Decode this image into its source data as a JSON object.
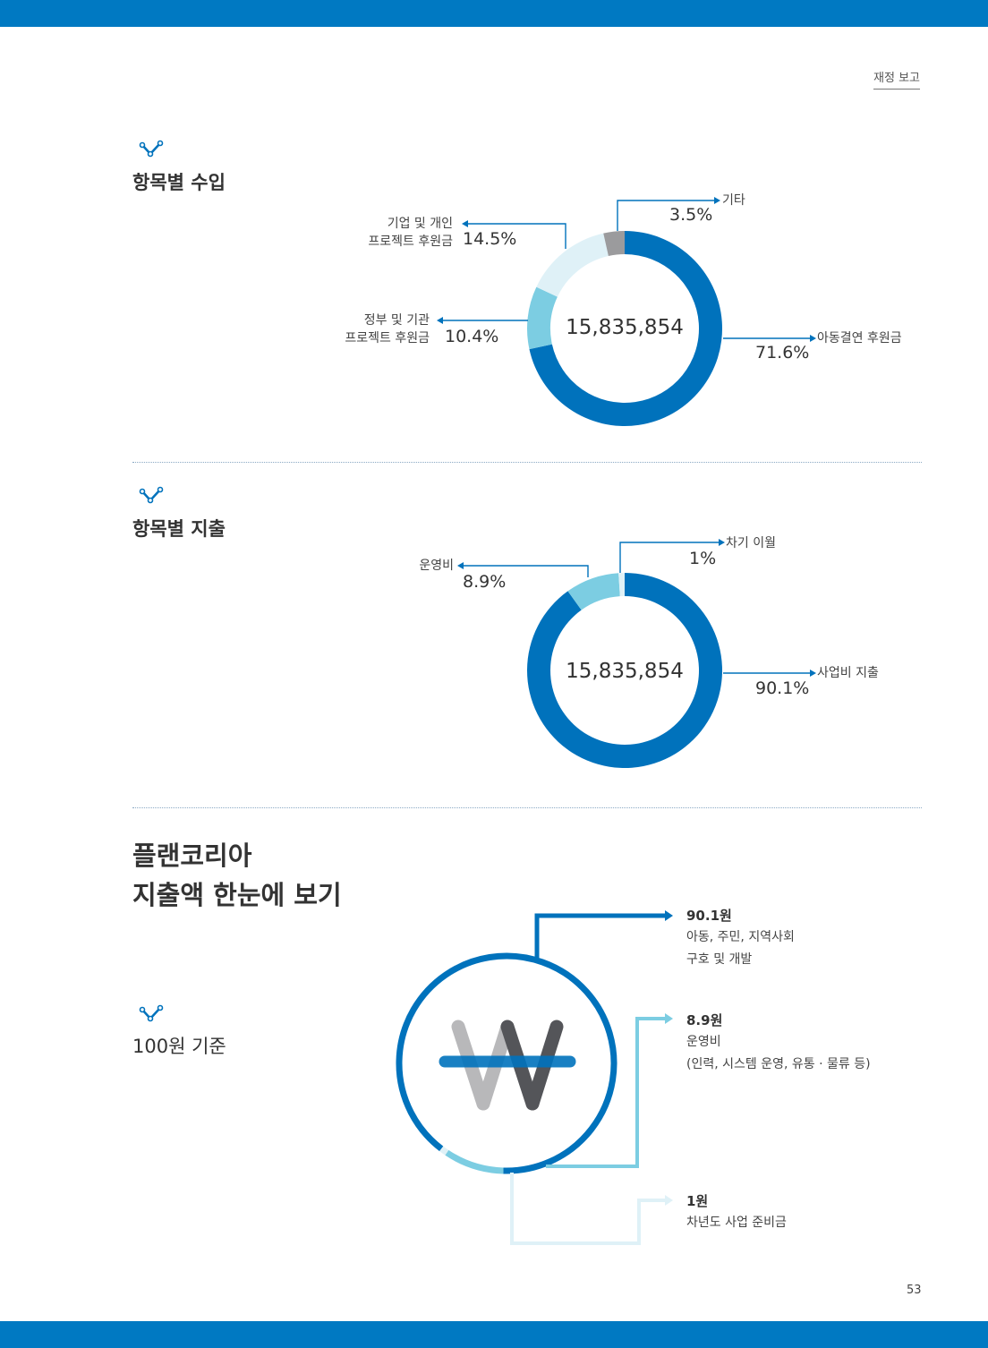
{
  "header": {
    "running_head": "재정 보고",
    "page_number": "53"
  },
  "income": {
    "title": "항목별 수입",
    "total": "15,835,854",
    "labels": {
      "corporate_line1": "기업 및 개인",
      "corporate_line2": "프로젝트 후원금",
      "corporate_pct": "14.5%",
      "government_line1": "정부 및 기관",
      "government_line2": "프로젝트 후원금",
      "government_pct": "10.4%",
      "other": "기타",
      "other_pct": "3.5%",
      "sponsorship": "아동결연 후원금",
      "sponsorship_pct": "71.6%"
    }
  },
  "expense": {
    "title": "항목별 지출",
    "total": "15,835,854",
    "labels": {
      "operating": "운영비",
      "operating_pct": "8.9%",
      "carryover": "차기 이월",
      "carryover_pct": "1%",
      "business": "사업비 지출",
      "business_pct": "90.1%"
    }
  },
  "overview": {
    "title_line1": "플랜코리아",
    "title_line2": "지출액 한눈에 보기",
    "basis": "100원 기준",
    "items": [
      {
        "amount": "90.1원",
        "desc_line1": "아동, 주민, 지역사회",
        "desc_line2": "구호 및 개발"
      },
      {
        "amount": "8.9원",
        "desc_line1": "운영비",
        "desc_line2": "(인력, 시스템 운영, 유통 · 물류 등)"
      },
      {
        "amount": "1원",
        "desc_line1": "차년도 사업 준비금",
        "desc_line2": ""
      }
    ]
  },
  "colors": {
    "primary": "#0072bc",
    "light_blue": "#7ccde2",
    "pale_blue": "#dff1f7",
    "gray": "#9b9b9d",
    "dark_gray": "#545559",
    "mid_gray": "#b8b8ba"
  },
  "chart_data": [
    {
      "type": "pie",
      "title": "항목별 수입",
      "center_value": 15835854,
      "slices": [
        {
          "label": "아동결연 후원금",
          "value": 71.6,
          "color": "#0072bc"
        },
        {
          "label": "정부 및 기관 프로젝트 후원금",
          "value": 10.4,
          "color": "#7ccde2"
        },
        {
          "label": "기업 및 개인 프로젝트 후원금",
          "value": 14.5,
          "color": "#dff1f7"
        },
        {
          "label": "기타",
          "value": 3.5,
          "color": "#9b9b9d"
        }
      ]
    },
    {
      "type": "pie",
      "title": "항목별 지출",
      "center_value": 15835854,
      "slices": [
        {
          "label": "사업비 지출",
          "value": 90.1,
          "color": "#0072bc"
        },
        {
          "label": "운영비",
          "value": 8.9,
          "color": "#7ccde2"
        },
        {
          "label": "차기 이월",
          "value": 1,
          "color": "#dff1f7"
        }
      ]
    },
    {
      "type": "pie",
      "title": "100원 기준",
      "slices": [
        {
          "label": "아동, 주민, 지역사회 구호 및 개발",
          "value": 90.1,
          "color": "#0072bc"
        },
        {
          "label": "운영비",
          "value": 8.9,
          "color": "#7ccde2"
        },
        {
          "label": "차년도 사업 준비금",
          "value": 1,
          "color": "#dff1f7"
        }
      ]
    }
  ]
}
